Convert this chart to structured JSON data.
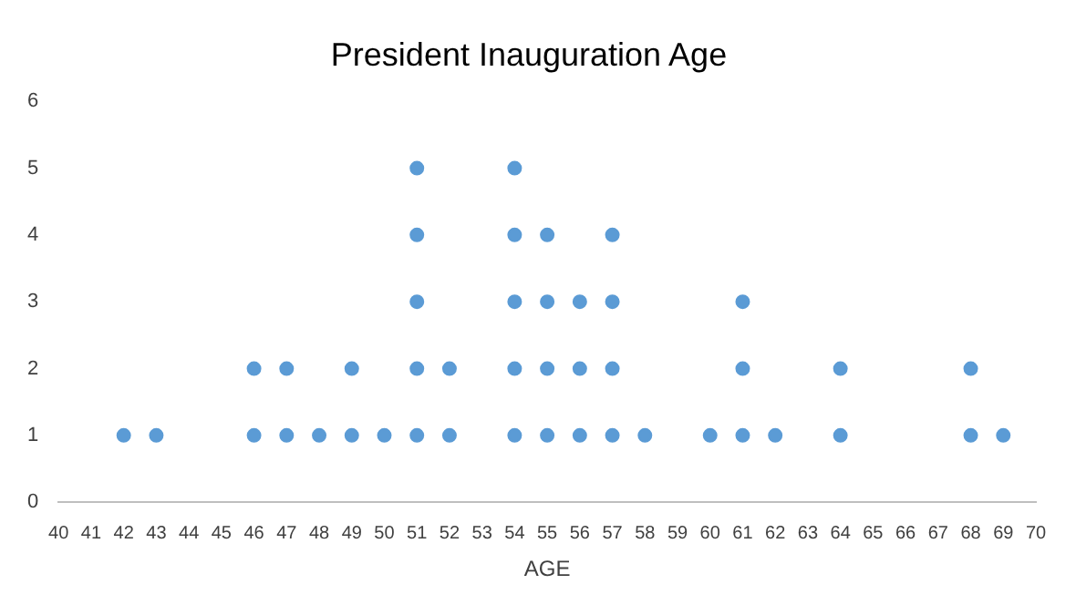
{
  "chart_data": {
    "type": "scatter",
    "title": "President Inauguration Age",
    "xlabel": "AGE",
    "x": [
      42,
      43,
      46,
      46,
      47,
      47,
      48,
      49,
      49,
      50,
      51,
      51,
      51,
      51,
      51,
      52,
      52,
      54,
      54,
      54,
      54,
      54,
      55,
      55,
      55,
      55,
      56,
      56,
      56,
      57,
      57,
      57,
      57,
      58,
      60,
      61,
      61,
      61,
      62,
      64,
      64,
      68,
      68,
      69
    ],
    "values": [
      1,
      1,
      1,
      2,
      1,
      2,
      1,
      1,
      2,
      1,
      1,
      2,
      3,
      4,
      5,
      1,
      2,
      1,
      2,
      3,
      4,
      5,
      1,
      2,
      3,
      4,
      1,
      2,
      3,
      1,
      2,
      3,
      4,
      1,
      1,
      1,
      2,
      3,
      1,
      1,
      2,
      1,
      2,
      1
    ],
    "color": "#5b9bd5",
    "marker": "circle",
    "xlim": [
      40,
      70
    ],
    "xticks": [
      40,
      41,
      42,
      43,
      44,
      45,
      46,
      47,
      48,
      49,
      50,
      51,
      52,
      53,
      54,
      55,
      56,
      57,
      58,
      59,
      60,
      61,
      62,
      63,
      64,
      65,
      66,
      67,
      68,
      69,
      70
    ],
    "ylim": [
      0,
      6
    ],
    "yticks": [
      0,
      1,
      2,
      3,
      4,
      5,
      6
    ],
    "grid": false,
    "legend": false
  }
}
